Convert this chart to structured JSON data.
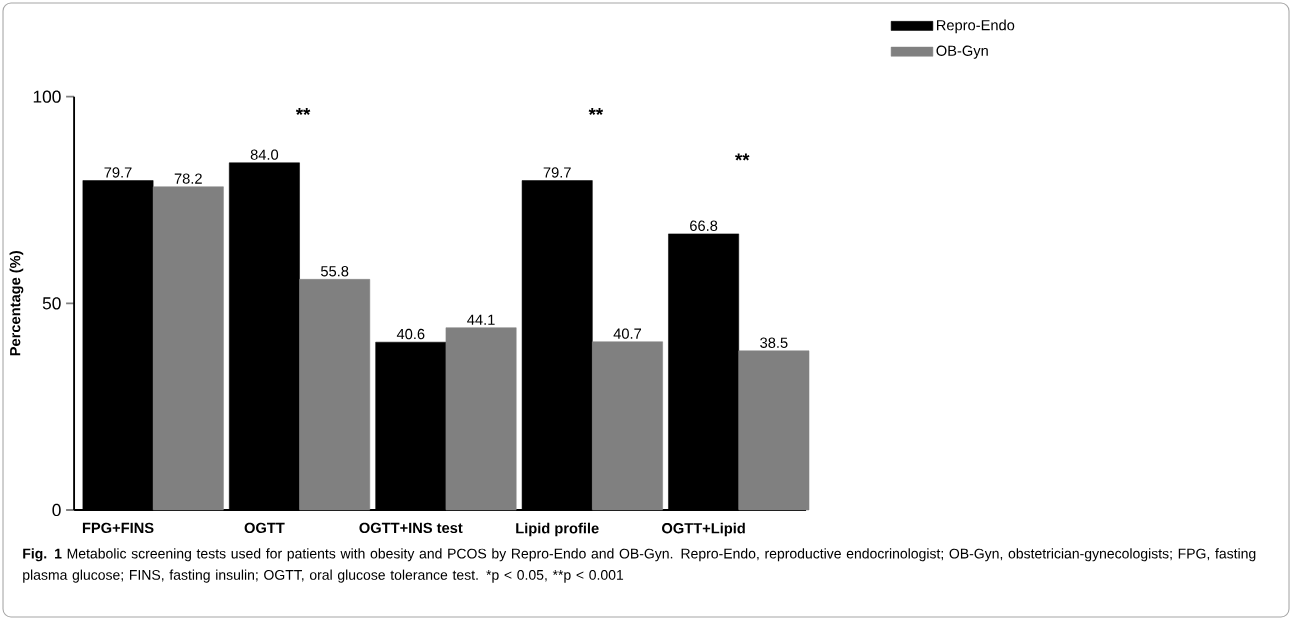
{
  "chart_data": {
    "type": "bar",
    "ylabel": "Percentage (%)",
    "categories": [
      "FPG+FINS",
      "OGTT",
      "OGTT+INS test",
      "Lipid profile",
      "OGTT+Lipid"
    ],
    "series": [
      {
        "name": "Repro-Endo",
        "color": "#000000",
        "values": [
          79.7,
          84.0,
          40.6,
          79.7,
          66.8
        ],
        "value_labels": [
          "79.7",
          "84.0",
          "40.6",
          "79.7",
          "66.8"
        ]
      },
      {
        "name": "OB-Gyn",
        "color": "#808080",
        "values": [
          78.2,
          55.8,
          44.1,
          40.7,
          38.5
        ],
        "value_labels": [
          "78.2",
          "55.8",
          "44.1",
          "40.7",
          "38.5"
        ]
      }
    ],
    "ylim": [
      0,
      100
    ],
    "yticks": [
      0,
      50,
      100
    ],
    "legend": "top right",
    "grid": false,
    "annotations": [
      "**",
      "**",
      "**",
      "**Fig. 1** Metabolic screening tests used for patients with obesity and PCOS by Repro-Endo and OB-Gyn. Repro-Endo, reproductive endocrinologist; OB-Gyn, obstetrician-gynecologists; FPG, fasting plasma glucose; FINS, fasting insulin; OGTT, oral glucose tolerance test.",
      "*p < 0.05, **p < 0.001"
    ]
  }
}
